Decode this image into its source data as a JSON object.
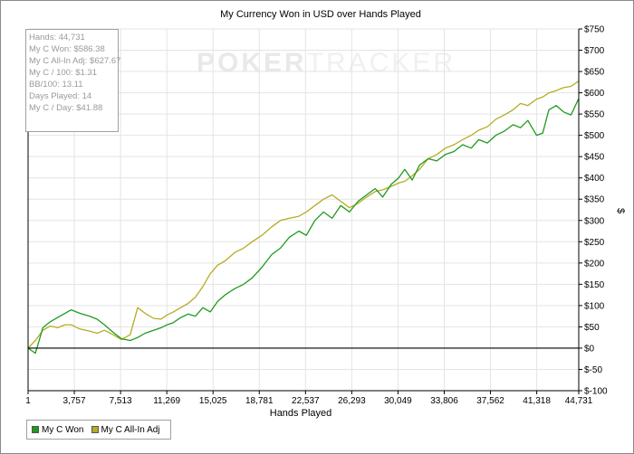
{
  "chart_data": {
    "type": "line",
    "title": "My Currency Won in USD over Hands Played",
    "xlabel": "Hands Played",
    "ylabel": "$",
    "xlim": [
      1,
      44731
    ],
    "ylim": [
      -100,
      750
    ],
    "xticks": [
      1,
      3757,
      7513,
      11269,
      15025,
      18781,
      22537,
      26293,
      30049,
      33806,
      37562,
      41318,
      44731
    ],
    "xtick_labels": [
      "1",
      "3,757",
      "7,513",
      "11,269",
      "15,025",
      "18,781",
      "22,537",
      "26,293",
      "30,049",
      "33,806",
      "37,562",
      "41,318",
      "44,731"
    ],
    "yticks": [
      -100,
      -50,
      0,
      50,
      100,
      150,
      200,
      250,
      300,
      350,
      400,
      450,
      500,
      550,
      600,
      650,
      700,
      750
    ],
    "ytick_labels": [
      "$-100",
      "$-50",
      "$0",
      "$50",
      "$100",
      "$150",
      "$200",
      "$250",
      "$300",
      "$350",
      "$400",
      "$450",
      "$500",
      "$550",
      "$600",
      "$650",
      "$700",
      "$750"
    ],
    "grid": true,
    "axis_side": "right",
    "legend_position": "bottom-left",
    "series": [
      {
        "name": "My C Won",
        "color": "#1f9a1f",
        "x": [
          1,
          600,
          1200,
          1800,
          2400,
          3000,
          3500,
          4200,
          5000,
          5600,
          6200,
          7000,
          7600,
          8300,
          8900,
          9500,
          10200,
          10800,
          11300,
          11800,
          12400,
          13000,
          13600,
          14200,
          14800,
          15400,
          16000,
          16800,
          17500,
          18200,
          19000,
          19800,
          20500,
          21200,
          22000,
          22600,
          23300,
          24000,
          24700,
          25400,
          26100,
          26800,
          27500,
          28200,
          28800,
          29500,
          30100,
          30600,
          31200,
          31800,
          32500,
          33200,
          33900,
          34600,
          35300,
          36000,
          36600,
          37300,
          38000,
          38700,
          39400,
          40000,
          40600,
          41300,
          41800,
          42300,
          42900,
          43500,
          44100,
          44731
        ],
        "values": [
          0,
          -12,
          48,
          62,
          72,
          82,
          90,
          82,
          75,
          68,
          55,
          35,
          22,
          18,
          25,
          35,
          42,
          48,
          55,
          60,
          72,
          80,
          75,
          95,
          85,
          110,
          125,
          140,
          150,
          165,
          190,
          220,
          235,
          260,
          275,
          265,
          300,
          320,
          305,
          335,
          320,
          345,
          360,
          375,
          355,
          385,
          400,
          420,
          395,
          430,
          445,
          440,
          455,
          462,
          478,
          470,
          490,
          482,
          500,
          510,
          525,
          518,
          535,
          500,
          505,
          560,
          570,
          555,
          548,
          586.38
        ]
      },
      {
        "name": "My C All-In Adj",
        "color": "#b5ac24",
        "x": [
          1,
          600,
          1200,
          1800,
          2400,
          3000,
          3500,
          4200,
          5000,
          5600,
          6200,
          7000,
          7600,
          8300,
          8900,
          9500,
          10200,
          10800,
          11300,
          11800,
          12400,
          13000,
          13600,
          14200,
          14800,
          15400,
          16000,
          16800,
          17500,
          18200,
          19000,
          19800,
          20500,
          21200,
          22000,
          22600,
          23300,
          24000,
          24700,
          25400,
          26100,
          26800,
          27500,
          28200,
          28800,
          29500,
          30100,
          30600,
          31200,
          31800,
          32500,
          33200,
          33900,
          34600,
          35300,
          36000,
          36600,
          37300,
          38000,
          38700,
          39400,
          40000,
          40600,
          41300,
          41800,
          42300,
          42900,
          43500,
          44100,
          44731
        ],
        "values": [
          0,
          18,
          42,
          52,
          48,
          55,
          55,
          45,
          40,
          35,
          42,
          30,
          20,
          32,
          95,
          82,
          70,
          68,
          78,
          85,
          95,
          105,
          120,
          145,
          175,
          195,
          205,
          225,
          235,
          250,
          265,
          285,
          300,
          305,
          310,
          320,
          335,
          350,
          360,
          345,
          330,
          340,
          355,
          368,
          372,
          380,
          388,
          392,
          405,
          420,
          445,
          455,
          470,
          478,
          490,
          500,
          512,
          520,
          538,
          548,
          560,
          575,
          570,
          585,
          590,
          600,
          605,
          612,
          615,
          627.67
        ]
      }
    ]
  },
  "stats": [
    "Hands: 44,731",
    "My C Won: $586.38",
    "My C All-In Adj: $627.67",
    "My C / 100: $1.31",
    "BB/100: 13.11",
    "Days Played: 14",
    "My C / Day: $41.88"
  ],
  "watermark": {
    "part1": "POKER",
    "part2": "TRACKER"
  }
}
